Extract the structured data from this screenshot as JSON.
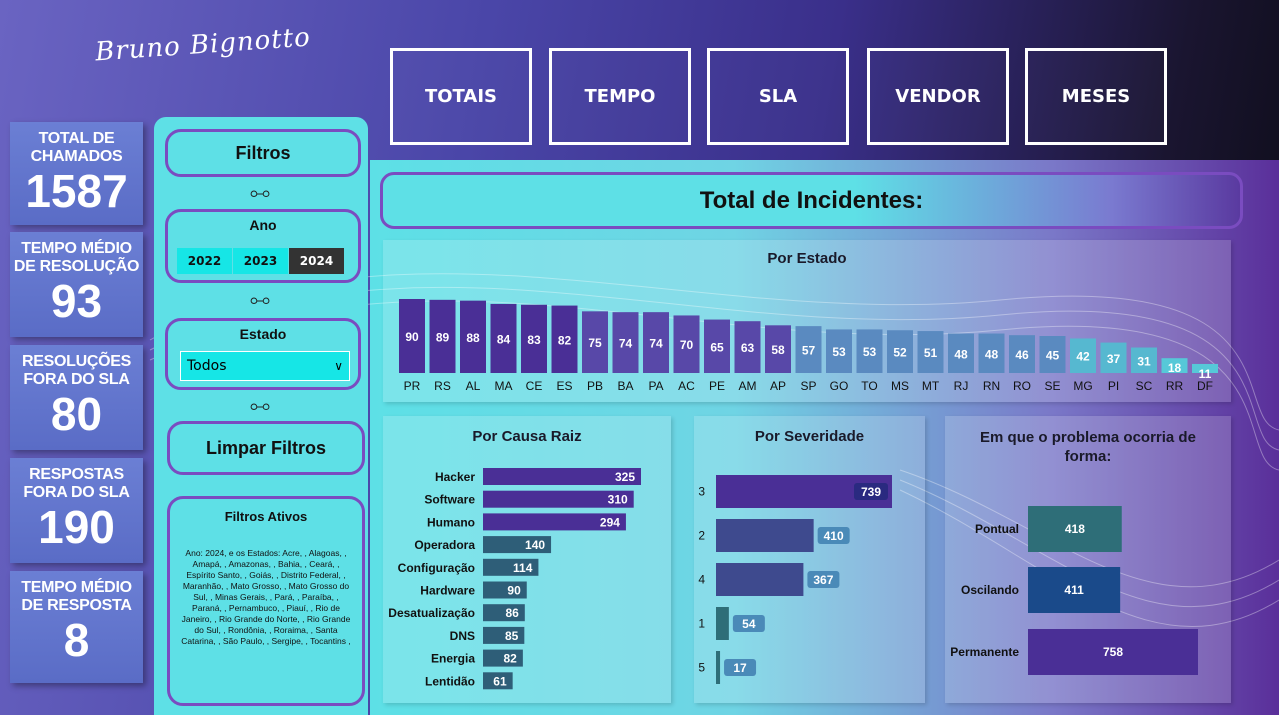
{
  "logo": "Bruno Bignotto",
  "nav": [
    "TOTAIS",
    "TEMPO",
    "SLA",
    "VENDOR",
    "MESES"
  ],
  "kpis": [
    {
      "title1": "TOTAL DE",
      "title2": "CHAMADOS",
      "value": "1587"
    },
    {
      "title1": "TEMPO MÉDIO",
      "title2": "DE RESOLUÇÃO",
      "value": "93"
    },
    {
      "title1": "RESOLUÇÕES",
      "title2": "FORA DO SLA",
      "value": "80"
    },
    {
      "title1": "RESPOSTAS",
      "title2": "FORA DO SLA",
      "value": "190"
    },
    {
      "title1": "TEMPO MÉDIO",
      "title2": "DE RESPOSTA",
      "value": "8"
    }
  ],
  "filters": {
    "title": "Filtros",
    "ano_label": "Ano",
    "years": [
      "2022",
      "2023",
      "2024"
    ],
    "selected_year": "2024",
    "estado_label": "Estado",
    "estado_value": "Todos",
    "clear": "Limpar Filtros",
    "ativos_title": "Filtros Ativos",
    "ativos_text": "Ano: 2024,  e os Estados:  Acre, , Alagoas, ,  Amapá, ,  Amazonas, , Bahia, ,  Ceará, ,  Espírito Santo, , Goiás, ,  Distrito Federal, ,  Maranhão, ,  Mato Grosso, ,  Mato Grosso do Sul, ,  Minas Gerais, ,  Pará, ,  Paraíba, , Paraná, ,  Pernambuco, ,  Piauí, ,  Rio de Janeiro, ,  Rio Grande do Norte, ,  Rio Grande do Sul, ,  Rondônia, , Roraima, ,  Santa Catarina, ,  São Paulo, ,  Sergipe, ,  Tocantins  ,"
  },
  "header": "Total de Incidentes:",
  "colors": {
    "purple": "#4a2f96",
    "mid": "#5a4aaa",
    "light": "#4fb0d0",
    "teal": "#2e6e78",
    "steel": "#3a4a8a"
  },
  "chart_data": [
    {
      "type": "bar",
      "title": "Por Estado",
      "categories": [
        "PR",
        "RS",
        "AL",
        "MA",
        "CE",
        "ES",
        "PB",
        "BA",
        "PA",
        "AC",
        "PE",
        "AM",
        "AP",
        "SP",
        "GO",
        "TO",
        "MS",
        "MT",
        "RJ",
        "RN",
        "RO",
        "SE",
        "MG",
        "PI",
        "SC",
        "RR",
        "DF"
      ],
      "values": [
        90,
        89,
        88,
        84,
        83,
        82,
        75,
        74,
        74,
        70,
        65,
        63,
        58,
        57,
        53,
        53,
        52,
        51,
        48,
        48,
        46,
        45,
        42,
        37,
        31,
        18,
        11
      ]
    },
    {
      "type": "bar",
      "orientation": "horizontal",
      "title": "Por Causa Raiz",
      "categories": [
        "Hacker",
        "Software",
        "Humano",
        "Operadora",
        "Configuração",
        "Hardware",
        "Desatualização",
        "DNS",
        "Energia",
        "Lentidão"
      ],
      "values": [
        325,
        310,
        294,
        140,
        114,
        90,
        86,
        85,
        82,
        61
      ]
    },
    {
      "type": "bar",
      "orientation": "horizontal",
      "title": "Por Severidade",
      "categories": [
        "3",
        "2",
        "4",
        "1",
        "5"
      ],
      "values": [
        739,
        410,
        367,
        54,
        17
      ]
    },
    {
      "type": "bar",
      "orientation": "horizontal",
      "title": "Em que o problema ocorria de forma:",
      "categories": [
        "Pontual",
        "Oscilando",
        "Permanente"
      ],
      "values": [
        418,
        411,
        758
      ]
    }
  ]
}
